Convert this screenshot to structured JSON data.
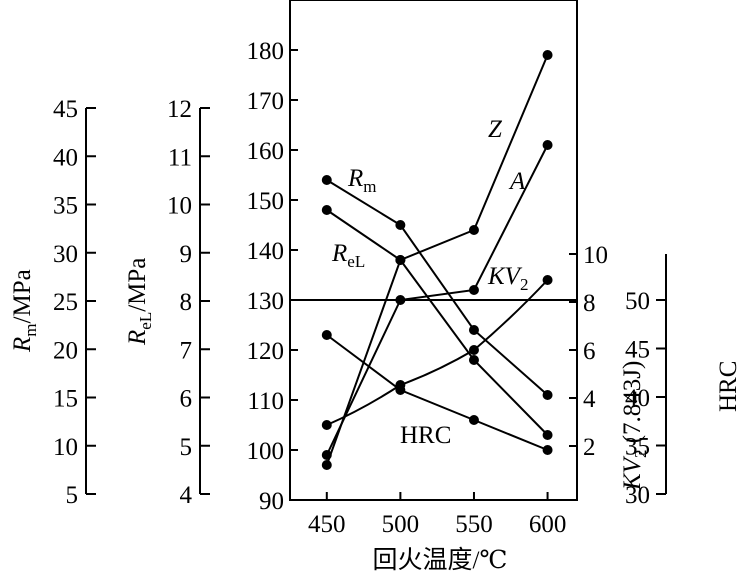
{
  "chart_data": {
    "type": "line",
    "x": [
      450,
      500,
      550,
      600
    ],
    "xlabel": "回火温度/℃",
    "xlim": [
      425,
      620
    ],
    "grid": false,
    "axes": {
      "main": {
        "ticks": [
          "90",
          "100",
          "110",
          "120",
          "130",
          "140",
          "150",
          "160",
          "170",
          "180"
        ],
        "ylim": [
          90,
          190
        ]
      },
      "rm": {
        "label_sym": "R",
        "label_sub": "m",
        "label_unit": "/MPa",
        "ticks": [
          "5",
          "10",
          "15",
          "20",
          "25",
          "30",
          "35",
          "40",
          "45"
        ],
        "ylim": [
          5,
          45
        ]
      },
      "rel": {
        "label_sym": "R",
        "label_sub": "eL",
        "label_unit": "/MPa",
        "ticks": [
          "4",
          "5",
          "6",
          "7",
          "8",
          "9",
          "10",
          "11",
          "12"
        ],
        "ylim": [
          4,
          12
        ]
      },
      "kv": {
        "label_sym": "KV",
        "label_sub": "2",
        "label_unit": " (7.843J)",
        "ticks": [
          "2",
          "4",
          "6",
          "8",
          "10"
        ],
        "ylim": [
          0,
          10
        ]
      },
      "hrc": {
        "label": "HRC",
        "ticks": [
          "30",
          "35",
          "40",
          "45",
          "50"
        ],
        "ylim": [
          30,
          50
        ]
      }
    },
    "series": [
      {
        "name": "Z",
        "name_sub": "",
        "axis": "main",
        "values": [
          97,
          138,
          144,
          179
        ]
      },
      {
        "name": "A",
        "name_sub": "",
        "axis": "main",
        "values": [
          99,
          130,
          132,
          161
        ]
      },
      {
        "name": "R",
        "name_sub": "m",
        "axis": "main",
        "values": [
          154,
          145,
          124,
          111
        ]
      },
      {
        "name": "R",
        "name_sub": "eL",
        "axis": "main",
        "values": [
          148,
          138,
          118,
          103
        ]
      },
      {
        "name": "KV",
        "name_sub": "2",
        "axis": "main",
        "values": [
          105,
          113,
          120,
          134
        ]
      },
      {
        "name": "HRC",
        "name_sub": "",
        "axis": "main",
        "values": [
          123,
          112,
          106,
          100
        ]
      }
    ]
  }
}
